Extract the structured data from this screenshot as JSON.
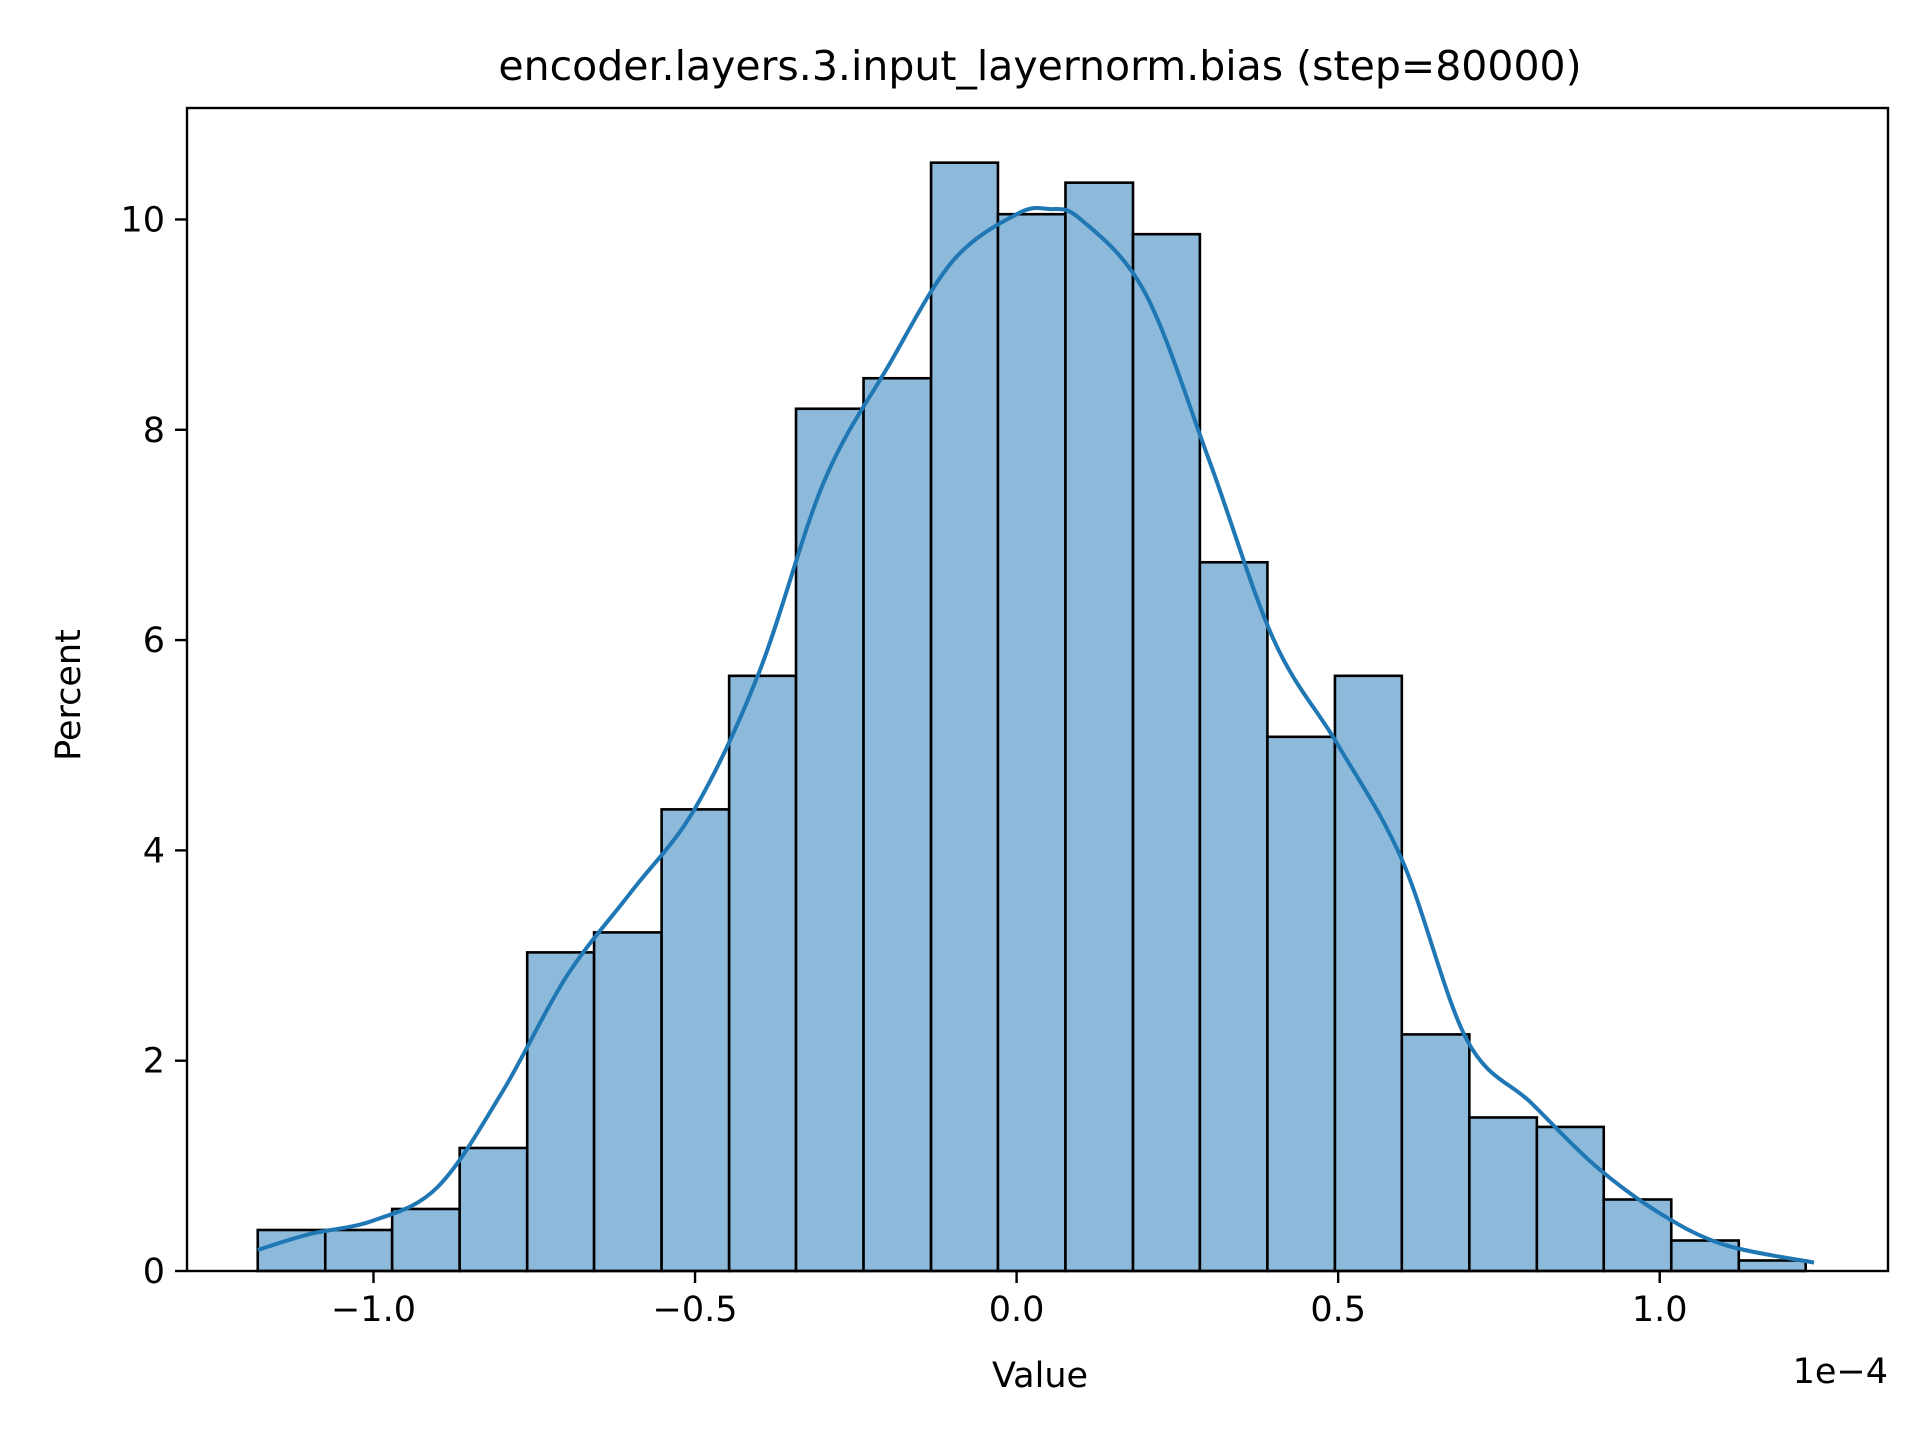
{
  "chart_data": {
    "type": "histogram",
    "title": "encoder.layers.3.input_layernorm.bias (step=80000)",
    "xlabel": "Value",
    "ylabel": "Percent",
    "x_offset_label": "1e−4",
    "x_scale": 0.0001,
    "xlim": [
      -1.29,
      1.355
    ],
    "ylim": [
      0,
      11.06
    ],
    "x_ticks": [
      -1.0,
      -0.5,
      0.0,
      0.5,
      1.0
    ],
    "x_tick_labels": [
      "−1.0",
      "−0.5",
      "0.0",
      "0.5",
      "1.0"
    ],
    "y_ticks": [
      0,
      2,
      4,
      6,
      8,
      10
    ],
    "y_tick_labels": [
      "0",
      "2",
      "4",
      "6",
      "8",
      "10"
    ],
    "bin_edges": [
      -1.18,
      -1.075,
      -0.971,
      -0.866,
      -0.761,
      -0.657,
      -0.552,
      -0.447,
      -0.343,
      -0.238,
      -0.133,
      -0.029,
      0.076,
      0.181,
      0.285,
      0.39,
      0.495,
      0.599,
      0.704,
      0.809,
      0.913,
      1.018,
      1.123,
      1.227
    ],
    "values": [
      0.39,
      0.39,
      0.59,
      1.17,
      3.03,
      3.22,
      4.39,
      5.66,
      8.2,
      8.49,
      10.54,
      10.05,
      10.35,
      9.86,
      6.74,
      5.08,
      5.66,
      2.25,
      1.46,
      1.37,
      0.68,
      0.29,
      0.1
    ],
    "kde": {
      "x": [
        -1.18,
        -1.1,
        -1.0,
        -0.9,
        -0.8,
        -0.7,
        -0.6,
        -0.5,
        -0.4,
        -0.3,
        -0.2,
        -0.1,
        0.0,
        0.05,
        0.1,
        0.2,
        0.3,
        0.4,
        0.5,
        0.6,
        0.7,
        0.8,
        0.9,
        1.0,
        1.1,
        1.24
      ],
      "y": [
        0.2,
        0.35,
        0.48,
        0.8,
        1.7,
        2.8,
        3.6,
        4.4,
        5.7,
        7.5,
        8.6,
        9.6,
        10.05,
        10.1,
        10.0,
        9.3,
        7.7,
        6.0,
        5.0,
        3.9,
        2.2,
        1.6,
        1.0,
        0.55,
        0.25,
        0.08
      ]
    },
    "bar_fill": "#8db9da",
    "bar_edge": "#000000",
    "kde_color": "#1f77b4",
    "grid": false,
    "legend": false
  }
}
